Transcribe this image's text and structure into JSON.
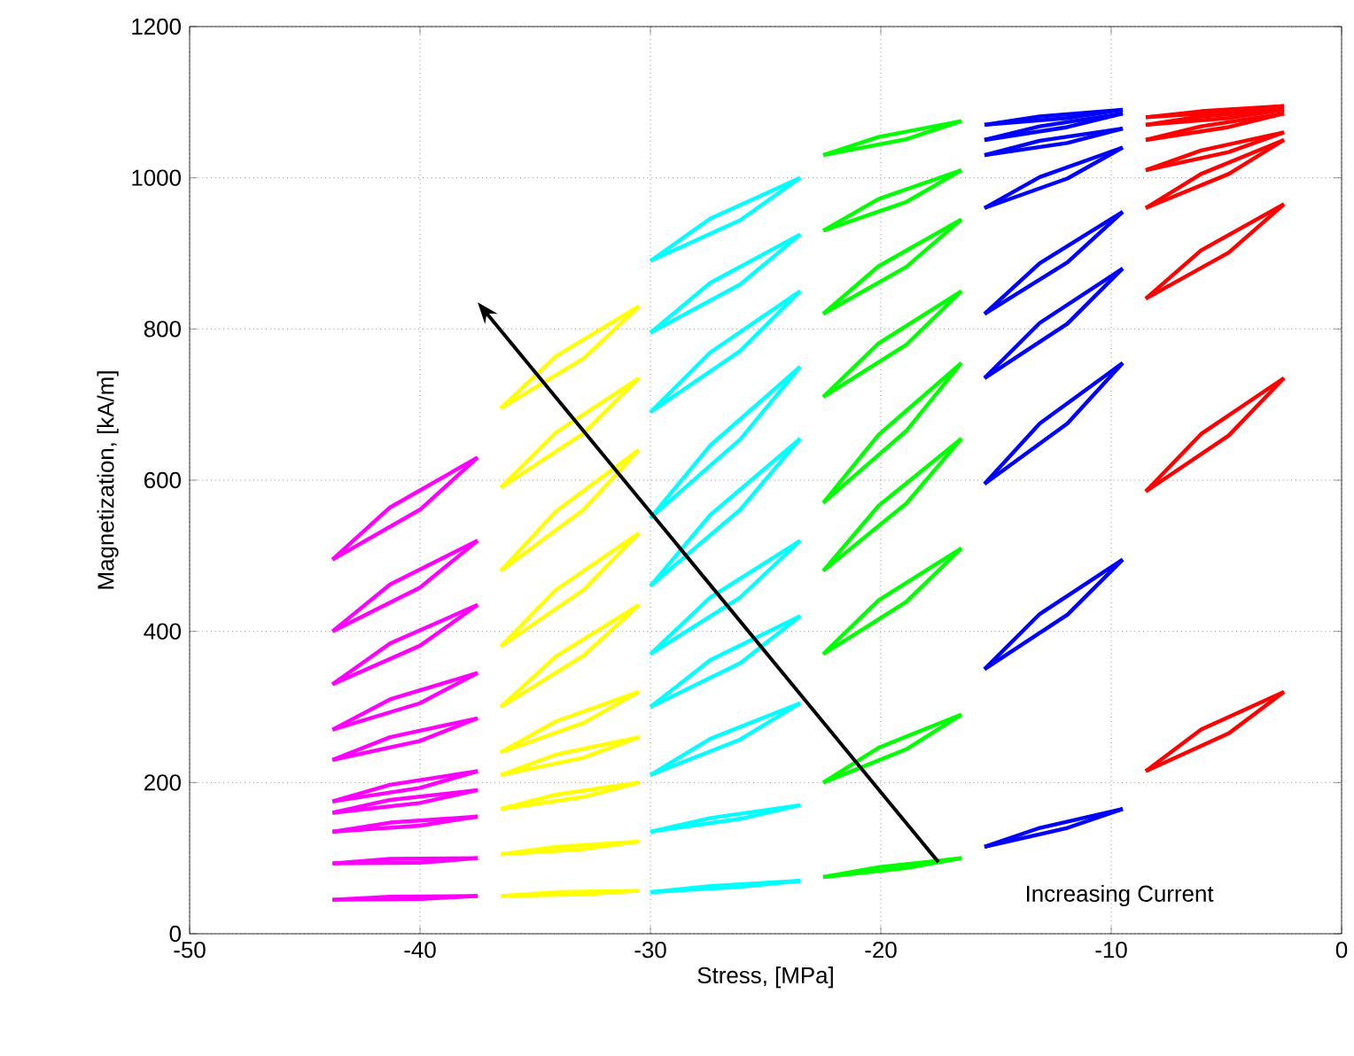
{
  "chart_data": {
    "type": "line",
    "xlabel": "Stress, [MPa]",
    "ylabel": "Magnetization, [kA/m]",
    "xlim": [
      -50,
      0
    ],
    "ylim": [
      0,
      1200
    ],
    "xticks": [
      -50,
      -40,
      -30,
      -20,
      -10,
      0
    ],
    "yticks": [
      0,
      200,
      400,
      600,
      800,
      1000,
      1200
    ],
    "grid": true,
    "marker": "none",
    "line_style": "solid",
    "annotations": [
      "Increasing Current"
    ],
    "series": [
      {
        "color": "#ff00ff",
        "x": [
          -43.8,
          -41.3,
          -37.5
        ],
        "values": [
          45,
          49,
          50
        ]
      },
      {
        "color": "#ff00ff",
        "x": [
          -43.8,
          -40.0,
          -37.5
        ],
        "values": [
          45,
          46,
          50
        ]
      },
      {
        "color": "#ff00ff",
        "x": [
          -43.8,
          -41.3,
          -37.5
        ],
        "values": [
          93,
          99,
          100
        ]
      },
      {
        "color": "#ff00ff",
        "x": [
          -43.8,
          -40.0,
          -37.5
        ],
        "values": [
          93,
          94,
          100
        ]
      },
      {
        "color": "#ff00ff",
        "x": [
          -43.8,
          -41.3,
          -37.5
        ],
        "values": [
          135,
          147,
          155
        ]
      },
      {
        "color": "#ff00ff",
        "x": [
          -43.8,
          -40.0,
          -37.5
        ],
        "values": [
          135,
          143,
          155
        ]
      },
      {
        "color": "#ff00ff",
        "x": [
          -43.8,
          -41.3,
          -37.5
        ],
        "values": [
          160,
          177,
          190
        ]
      },
      {
        "color": "#ff00ff",
        "x": [
          -43.8,
          -40.0,
          -37.5
        ],
        "values": [
          160,
          173,
          190
        ]
      },
      {
        "color": "#ff00ff",
        "x": [
          -43.8,
          -41.3,
          -37.5
        ],
        "values": [
          175,
          197,
          215
        ]
      },
      {
        "color": "#ff00ff",
        "x": [
          -43.8,
          -40.0,
          -37.5
        ],
        "values": [
          175,
          193,
          215
        ]
      },
      {
        "color": "#ff00ff",
        "x": [
          -43.8,
          -41.3,
          -37.5
        ],
        "values": [
          230,
          260,
          285
        ]
      },
      {
        "color": "#ff00ff",
        "x": [
          -43.8,
          -40.0,
          -37.5
        ],
        "values": [
          230,
          255,
          285
        ]
      },
      {
        "color": "#ff00ff",
        "x": [
          -43.8,
          -41.3,
          -37.5
        ],
        "values": [
          270,
          310,
          345
        ]
      },
      {
        "color": "#ff00ff",
        "x": [
          -43.8,
          -40.0,
          -37.5
        ],
        "values": [
          270,
          305,
          345
        ]
      },
      {
        "color": "#ff00ff",
        "x": [
          -43.8,
          -41.3,
          -37.5
        ],
        "values": [
          330,
          384,
          435
        ]
      },
      {
        "color": "#ff00ff",
        "x": [
          -43.8,
          -40.0,
          -37.5
        ],
        "values": [
          330,
          381,
          435
        ]
      },
      {
        "color": "#ff00ff",
        "x": [
          -43.8,
          -41.3,
          -37.5
        ],
        "values": [
          400,
          462,
          520
        ]
      },
      {
        "color": "#ff00ff",
        "x": [
          -43.8,
          -40.0,
          -37.5
        ],
        "values": [
          400,
          458,
          520
        ]
      },
      {
        "color": "#ff00ff",
        "x": [
          -43.8,
          -41.3,
          -37.5
        ],
        "values": [
          495,
          564,
          630
        ]
      },
      {
        "color": "#ff00ff",
        "x": [
          -43.8,
          -40.0,
          -37.5
        ],
        "values": [
          495,
          561,
          630
        ]
      },
      {
        "color": "#ffff00",
        "x": [
          -36.5,
          -34.1,
          -30.5
        ],
        "values": [
          50,
          55,
          57
        ]
      },
      {
        "color": "#ffff00",
        "x": [
          -36.5,
          -32.9,
          -30.5
        ],
        "values": [
          50,
          52,
          57
        ]
      },
      {
        "color": "#ffff00",
        "x": [
          -36.5,
          -34.1,
          -30.5
        ],
        "values": [
          105,
          115,
          122
        ]
      },
      {
        "color": "#ffff00",
        "x": [
          -36.5,
          -32.9,
          -30.5
        ],
        "values": [
          105,
          112,
          122
        ]
      },
      {
        "color": "#ffff00",
        "x": [
          -36.5,
          -34.1,
          -30.5
        ],
        "values": [
          165,
          184,
          200
        ]
      },
      {
        "color": "#ffff00",
        "x": [
          -36.5,
          -32.9,
          -30.5
        ],
        "values": [
          165,
          181,
          200
        ]
      },
      {
        "color": "#ffff00",
        "x": [
          -36.5,
          -34.1,
          -30.5
        ],
        "values": [
          210,
          237,
          260
        ]
      },
      {
        "color": "#ffff00",
        "x": [
          -36.5,
          -32.9,
          -30.5
        ],
        "values": [
          210,
          233,
          260
        ]
      },
      {
        "color": "#ffff00",
        "x": [
          -36.5,
          -34.1,
          -30.5
        ],
        "values": [
          240,
          281,
          320
        ]
      },
      {
        "color": "#ffff00",
        "x": [
          -36.5,
          -32.9,
          -30.5
        ],
        "values": [
          240,
          279,
          320
        ]
      },
      {
        "color": "#ffff00",
        "x": [
          -36.5,
          -34.1,
          -30.5
        ],
        "values": [
          300,
          367,
          435
        ]
      },
      {
        "color": "#ffff00",
        "x": [
          -36.5,
          -32.9,
          -30.5
        ],
        "values": [
          300,
          368,
          435
        ]
      },
      {
        "color": "#ffff00",
        "x": [
          -36.5,
          -34.1,
          -30.5
        ],
        "values": [
          380,
          455,
          530
        ]
      },
      {
        "color": "#ffff00",
        "x": [
          -36.5,
          -32.9,
          -30.5
        ],
        "values": [
          380,
          455,
          530
        ]
      },
      {
        "color": "#ffff00",
        "x": [
          -36.5,
          -34.1,
          -30.5
        ],
        "values": [
          480,
          559,
          640
        ]
      },
      {
        "color": "#ffff00",
        "x": [
          -36.5,
          -32.9,
          -30.5
        ],
        "values": [
          480,
          561,
          640
        ]
      },
      {
        "color": "#ffff00",
        "x": [
          -36.5,
          -34.1,
          -30.5
        ],
        "values": [
          590,
          663,
          735
        ]
      },
      {
        "color": "#ffff00",
        "x": [
          -36.5,
          -32.9,
          -30.5
        ],
        "values": [
          590,
          662,
          735
        ]
      },
      {
        "color": "#ffff00",
        "x": [
          -36.5,
          -34.1,
          -30.5
        ],
        "values": [
          695,
          764,
          830
        ]
      },
      {
        "color": "#ffff00",
        "x": [
          -36.5,
          -32.9,
          -30.5
        ],
        "values": [
          695,
          761,
          830
        ]
      },
      {
        "color": "#00ffff",
        "x": [
          -30.0,
          -27.4,
          -23.5
        ],
        "values": [
          55,
          63,
          70
        ]
      },
      {
        "color": "#00ffff",
        "x": [
          -30.0,
          -26.1,
          -23.5
        ],
        "values": [
          55,
          62,
          70
        ]
      },
      {
        "color": "#00ffff",
        "x": [
          -30.0,
          -27.4,
          -23.5
        ],
        "values": [
          135,
          153,
          170
        ]
      },
      {
        "color": "#00ffff",
        "x": [
          -30.0,
          -26.1,
          -23.5
        ],
        "values": [
          135,
          152,
          170
        ]
      },
      {
        "color": "#00ffff",
        "x": [
          -30.0,
          -27.4,
          -23.5
        ],
        "values": [
          210,
          258,
          305
        ]
      },
      {
        "color": "#00ffff",
        "x": [
          -30.0,
          -26.1,
          -23.5
        ],
        "values": [
          210,
          257,
          305
        ]
      },
      {
        "color": "#00ffff",
        "x": [
          -30.0,
          -27.4,
          -23.5
        ],
        "values": [
          300,
          362,
          420
        ]
      },
      {
        "color": "#00ffff",
        "x": [
          -30.0,
          -26.1,
          -23.5
        ],
        "values": [
          300,
          358,
          420
        ]
      },
      {
        "color": "#00ffff",
        "x": [
          -30.0,
          -27.4,
          -23.5
        ],
        "values": [
          370,
          445,
          520
        ]
      },
      {
        "color": "#00ffff",
        "x": [
          -30.0,
          -26.1,
          -23.5
        ],
        "values": [
          370,
          445,
          520
        ]
      },
      {
        "color": "#00ffff",
        "x": [
          -30.0,
          -27.4,
          -23.5
        ],
        "values": [
          460,
          554,
          655
        ]
      },
      {
        "color": "#00ffff",
        "x": [
          -30.0,
          -26.1,
          -23.5
        ],
        "values": [
          460,
          561,
          655
        ]
      },
      {
        "color": "#00ffff",
        "x": [
          -30.0,
          -27.4,
          -23.5
        ],
        "values": [
          550,
          646,
          750
        ]
      },
      {
        "color": "#00ffff",
        "x": [
          -30.0,
          -26.1,
          -23.5
        ],
        "values": [
          550,
          654,
          750
        ]
      },
      {
        "color": "#00ffff",
        "x": [
          -30.0,
          -27.4,
          -23.5
        ],
        "values": [
          690,
          769,
          850
        ]
      },
      {
        "color": "#00ffff",
        "x": [
          -30.0,
          -26.1,
          -23.5
        ],
        "values": [
          690,
          771,
          850
        ]
      },
      {
        "color": "#00ffff",
        "x": [
          -30.0,
          -27.4,
          -23.5
        ],
        "values": [
          795,
          861,
          925
        ]
      },
      {
        "color": "#00ffff",
        "x": [
          -30.0,
          -26.1,
          -23.5
        ],
        "values": [
          795,
          859,
          925
        ]
      },
      {
        "color": "#00ffff",
        "x": [
          -30.0,
          -27.4,
          -23.5
        ],
        "values": [
          890,
          946,
          1000
        ]
      },
      {
        "color": "#00ffff",
        "x": [
          -30.0,
          -26.1,
          -23.5
        ],
        "values": [
          890,
          944,
          1000
        ]
      },
      {
        "color": "#00ff00",
        "x": [
          -22.5,
          -20.1,
          -16.5
        ],
        "values": [
          75,
          88,
          100
        ]
      },
      {
        "color": "#00ff00",
        "x": [
          -22.5,
          -18.9,
          -16.5
        ],
        "values": [
          75,
          87,
          100
        ]
      },
      {
        "color": "#00ff00",
        "x": [
          -22.5,
          -20.1,
          -16.5
        ],
        "values": [
          200,
          246,
          290
        ]
      },
      {
        "color": "#00ff00",
        "x": [
          -22.5,
          -18.9,
          -16.5
        ],
        "values": [
          200,
          244,
          290
        ]
      },
      {
        "color": "#00ff00",
        "x": [
          -22.5,
          -20.1,
          -16.5
        ],
        "values": [
          370,
          441,
          510
        ]
      },
      {
        "color": "#00ff00",
        "x": [
          -22.5,
          -18.9,
          -16.5
        ],
        "values": [
          370,
          439,
          510
        ]
      },
      {
        "color": "#00ff00",
        "x": [
          -22.5,
          -20.1,
          -16.5
        ],
        "values": [
          480,
          566,
          655
        ]
      },
      {
        "color": "#00ff00",
        "x": [
          -22.5,
          -18.9,
          -16.5
        ],
        "values": [
          480,
          569,
          655
        ]
      },
      {
        "color": "#00ff00",
        "x": [
          -22.5,
          -20.1,
          -16.5
        ],
        "values": [
          570,
          660,
          755
        ]
      },
      {
        "color": "#00ff00",
        "x": [
          -22.5,
          -18.9,
          -16.5
        ],
        "values": [
          570,
          665,
          755
        ]
      },
      {
        "color": "#00ff00",
        "x": [
          -22.5,
          -20.1,
          -16.5
        ],
        "values": [
          710,
          781,
          850
        ]
      },
      {
        "color": "#00ff00",
        "x": [
          -22.5,
          -18.9,
          -16.5
        ],
        "values": [
          710,
          779,
          850
        ]
      },
      {
        "color": "#00ff00",
        "x": [
          -22.5,
          -20.1,
          -16.5
        ],
        "values": [
          820,
          883,
          945
        ]
      },
      {
        "color": "#00ff00",
        "x": [
          -22.5,
          -18.9,
          -16.5
        ],
        "values": [
          820,
          882,
          945
        ]
      },
      {
        "color": "#00ff00",
        "x": [
          -22.5,
          -20.1,
          -16.5
        ],
        "values": [
          930,
          972,
          1010
        ]
      },
      {
        "color": "#00ff00",
        "x": [
          -22.5,
          -18.9,
          -16.5
        ],
        "values": [
          930,
          968,
          1010
        ]
      },
      {
        "color": "#00ff00",
        "x": [
          -22.5,
          -20.1,
          -16.5
        ],
        "values": [
          1030,
          1054,
          1075
        ]
      },
      {
        "color": "#00ff00",
        "x": [
          -22.5,
          -18.9,
          -16.5
        ],
        "values": [
          1030,
          1051,
          1075
        ]
      },
      {
        "color": "#0000ff",
        "x": [
          -15.5,
          -13.1,
          -9.5
        ],
        "values": [
          115,
          140,
          165
        ]
      },
      {
        "color": "#0000ff",
        "x": [
          -15.5,
          -11.9,
          -9.5
        ],
        "values": [
          115,
          140,
          165
        ]
      },
      {
        "color": "#0000ff",
        "x": [
          -15.5,
          -13.1,
          -9.5
        ],
        "values": [
          350,
          423,
          495
        ]
      },
      {
        "color": "#0000ff",
        "x": [
          -15.5,
          -11.9,
          -9.5
        ],
        "values": [
          350,
          422,
          495
        ]
      },
      {
        "color": "#0000ff",
        "x": [
          -15.5,
          -13.1,
          -9.5
        ],
        "values": [
          595,
          675,
          755
        ]
      },
      {
        "color": "#0000ff",
        "x": [
          -15.5,
          -11.9,
          -9.5
        ],
        "values": [
          595,
          675,
          755
        ]
      },
      {
        "color": "#0000ff",
        "x": [
          -15.5,
          -13.1,
          -9.5
        ],
        "values": [
          735,
          808,
          880
        ]
      },
      {
        "color": "#0000ff",
        "x": [
          -15.5,
          -11.9,
          -9.5
        ],
        "values": [
          735,
          807,
          880
        ]
      },
      {
        "color": "#0000ff",
        "x": [
          -15.5,
          -13.1,
          -9.5
        ],
        "values": [
          820,
          887,
          955
        ]
      },
      {
        "color": "#0000ff",
        "x": [
          -15.5,
          -11.9,
          -9.5
        ],
        "values": [
          820,
          888,
          955
        ]
      },
      {
        "color": "#0000ff",
        "x": [
          -15.5,
          -13.1,
          -9.5
        ],
        "values": [
          960,
          1001,
          1040
        ]
      },
      {
        "color": "#0000ff",
        "x": [
          -15.5,
          -11.9,
          -9.5
        ],
        "values": [
          960,
          999,
          1040
        ]
      },
      {
        "color": "#0000ff",
        "x": [
          -15.5,
          -13.1,
          -9.5
        ],
        "values": [
          1030,
          1049,
          1065
        ]
      },
      {
        "color": "#0000ff",
        "x": [
          -15.5,
          -11.9,
          -9.5
        ],
        "values": [
          1030,
          1046,
          1065
        ]
      },
      {
        "color": "#0000ff",
        "x": [
          -15.5,
          -13.1,
          -9.5
        ],
        "values": [
          1050,
          1068,
          1085
        ]
      },
      {
        "color": "#0000ff",
        "x": [
          -15.5,
          -11.9,
          -9.5
        ],
        "values": [
          1050,
          1067,
          1085
        ]
      },
      {
        "color": "#0000ff",
        "x": [
          -15.5,
          -13.1,
          -9.5
        ],
        "values": [
          1070,
          1081,
          1090
        ]
      },
      {
        "color": "#0000ff",
        "x": [
          -15.5,
          -11.9,
          -9.5
        ],
        "values": [
          1070,
          1079,
          1090
        ]
      },
      {
        "color": "#ff0000",
        "x": [
          -8.5,
          -6.1,
          -2.5
        ],
        "values": [
          215,
          270,
          320
        ]
      },
      {
        "color": "#ff0000",
        "x": [
          -8.5,
          -4.9,
          -2.5
        ],
        "values": [
          215,
          265,
          320
        ]
      },
      {
        "color": "#ff0000",
        "x": [
          -8.5,
          -6.1,
          -2.5
        ],
        "values": [
          585,
          661,
          735
        ]
      },
      {
        "color": "#ff0000",
        "x": [
          -8.5,
          -4.9,
          -2.5
        ],
        "values": [
          585,
          659,
          735
        ]
      },
      {
        "color": "#ff0000",
        "x": [
          -8.5,
          -6.1,
          -2.5
        ],
        "values": [
          840,
          904,
          965
        ]
      },
      {
        "color": "#ff0000",
        "x": [
          -8.5,
          -4.9,
          -2.5
        ],
        "values": [
          840,
          901,
          965
        ]
      },
      {
        "color": "#ff0000",
        "x": [
          -8.5,
          -6.1,
          -2.5
        ],
        "values": [
          960,
          1005,
          1050
        ]
      },
      {
        "color": "#ff0000",
        "x": [
          -8.5,
          -4.9,
          -2.5
        ],
        "values": [
          960,
          1005,
          1050
        ]
      },
      {
        "color": "#ff0000",
        "x": [
          -8.5,
          -6.1,
          -2.5
        ],
        "values": [
          1010,
          1036,
          1060
        ]
      },
      {
        "color": "#ff0000",
        "x": [
          -8.5,
          -4.9,
          -2.5
        ],
        "values": [
          1010,
          1034,
          1060
        ]
      },
      {
        "color": "#ff0000",
        "x": [
          -8.5,
          -6.1,
          -2.5
        ],
        "values": [
          1050,
          1068,
          1085
        ]
      },
      {
        "color": "#ff0000",
        "x": [
          -8.5,
          -4.9,
          -2.5
        ],
        "values": [
          1050,
          1067,
          1085
        ]
      },
      {
        "color": "#ff0000",
        "x": [
          -8.5,
          -6.1,
          -2.5
        ],
        "values": [
          1070,
          1081,
          1090
        ]
      },
      {
        "color": "#ff0000",
        "x": [
          -8.5,
          -4.9,
          -2.5
        ],
        "values": [
          1070,
          1079,
          1090
        ]
      },
      {
        "color": "#ff0000",
        "x": [
          -8.5,
          -6.1,
          -2.5
        ],
        "values": [
          1080,
          1088,
          1095
        ]
      },
      {
        "color": "#ff0000",
        "x": [
          -8.5,
          -4.9,
          -2.5
        ],
        "values": [
          1080,
          1087,
          1095
        ]
      }
    ]
  }
}
